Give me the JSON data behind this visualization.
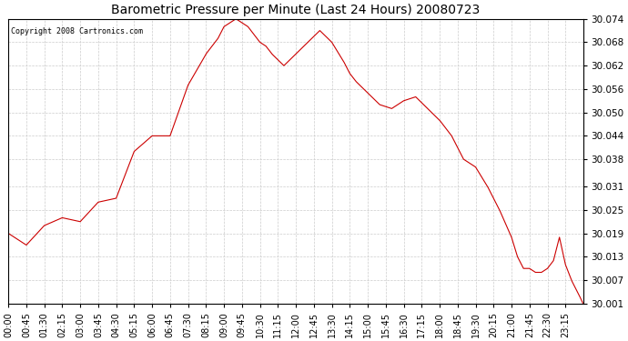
{
  "title": "Barometric Pressure per Minute (Last 24 Hours) 20080723",
  "copyright": "Copyright 2008 Cartronics.com",
  "line_color": "#cc0000",
  "bg_color": "#ffffff",
  "grid_color": "#cccccc",
  "ylim": [
    30.001,
    30.074
  ],
  "yticks": [
    30.001,
    30.007,
    30.013,
    30.019,
    30.025,
    30.031,
    30.038,
    30.044,
    30.05,
    30.056,
    30.062,
    30.068,
    30.074
  ],
  "xtick_labels": [
    "00:00",
    "00:45",
    "01:30",
    "02:15",
    "03:00",
    "03:45",
    "04:30",
    "05:15",
    "06:00",
    "06:45",
    "07:30",
    "08:15",
    "09:00",
    "09:45",
    "10:30",
    "11:15",
    "12:00",
    "12:45",
    "13:30",
    "14:15",
    "15:00",
    "15:45",
    "16:30",
    "17:15",
    "18:00",
    "18:45",
    "19:30",
    "20:15",
    "21:00",
    "21:45",
    "22:30",
    "23:15"
  ],
  "key_times": [
    0,
    45,
    90,
    135,
    180,
    225,
    270,
    315,
    360,
    405,
    450,
    495,
    510,
    525,
    540,
    555,
    570,
    585,
    600,
    615,
    630,
    645,
    660,
    690,
    720,
    750,
    780,
    810,
    840,
    855,
    870,
    900,
    930,
    960,
    990,
    1020,
    1050,
    1080,
    1110,
    1140,
    1170,
    1200,
    1230,
    1260,
    1275,
    1290,
    1305,
    1320,
    1335,
    1350,
    1365,
    1380,
    1395,
    1410,
    1420,
    1430,
    1439
  ],
  "key_values": [
    30.019,
    30.016,
    30.021,
    30.023,
    30.022,
    30.027,
    30.028,
    30.04,
    30.044,
    30.044,
    30.057,
    30.065,
    30.067,
    30.069,
    30.072,
    30.073,
    30.074,
    30.073,
    30.072,
    30.07,
    30.068,
    30.067,
    30.065,
    30.062,
    30.065,
    30.068,
    30.071,
    30.068,
    30.063,
    30.06,
    30.058,
    30.055,
    30.052,
    30.051,
    30.053,
    30.054,
    30.051,
    30.048,
    30.044,
    30.038,
    30.036,
    30.031,
    30.025,
    30.018,
    30.013,
    30.01,
    30.01,
    30.009,
    30.009,
    30.01,
    30.012,
    30.018,
    30.011,
    30.007,
    30.005,
    30.003,
    30.001
  ]
}
